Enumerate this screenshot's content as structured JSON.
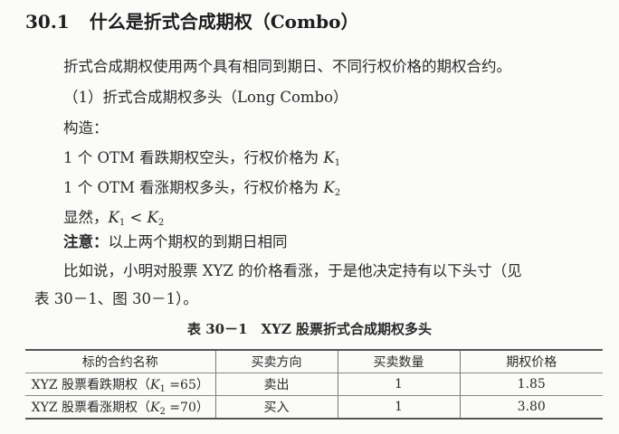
{
  "heading": {
    "number": "30.1",
    "title": "什么是折式合成期权（Combo）"
  },
  "paragraphs": {
    "intro": "折式合成期权使用两个具有相同到期日、不同行权价格的期权合约。",
    "sub_heading": "（1）折式合成期权多头（Long Combo）",
    "construct": "构造：",
    "leg1": {
      "text": "1 个 OTM 看跌期权空头，行权价格为 ",
      "var": "K",
      "sub": "1"
    },
    "leg2": {
      "text": "1 个 OTM 看涨期权多头，行权价格为 ",
      "var": "K",
      "sub": "2"
    },
    "obvious": {
      "text": "显然，",
      "k1": "K",
      "s1": "1",
      "op": " < ",
      "k2": "K",
      "s2": "2"
    },
    "note": {
      "label": "注意：",
      "text": "以上两个期权的到期日相同"
    },
    "example_1": "比如说，小明对股票 XYZ 的价格看涨，于是他决定持有以下头寸（见",
    "example_2": "表 30－1、图 30－1）。"
  },
  "table": {
    "caption": "表 30－1　XYZ 股票折式合成期权多头",
    "headers": [
      "标的合约名称",
      "买卖方向",
      "买卖数量",
      "期权价格"
    ],
    "rows": [
      {
        "name": "XYZ 股票看跌期权（",
        "var": "K",
        "sub": "1",
        "val": " =65）",
        "direction": "卖出",
        "qty": "1",
        "price": "1.85"
      },
      {
        "name": "XYZ 股票看涨期权（",
        "var": "K",
        "sub": "2",
        "val": " =70）",
        "direction": "买入",
        "qty": "1",
        "price": "3.80"
      }
    ]
  }
}
